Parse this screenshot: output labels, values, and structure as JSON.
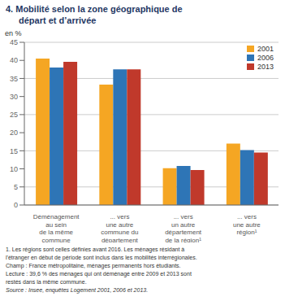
{
  "chart_data": {
    "type": "bar",
    "title": "4. Mobilité selon la zone géographique de\ndépart et d’arrivée",
    "y_label": "en %",
    "categories": [
      "Déménagement\nau sein\nde la même\ncommune",
      "... vers\nune autre\ncommune du\ndépartement",
      "... vers\nun autre\ndépartement\nde la région¹",
      "... vers\nune autre\nrégion¹"
    ],
    "series": [
      {
        "name": "2001",
        "color": "#F5A623",
        "values": [
          40.5,
          33.3,
          10.2,
          17.0
        ]
      },
      {
        "name": "2006",
        "color": "#2E75B6",
        "values": [
          38.0,
          37.5,
          10.8,
          15.2
        ]
      },
      {
        "name": "2013",
        "color": "#C0392B",
        "values": [
          39.6,
          37.5,
          9.7,
          14.5
        ]
      }
    ],
    "ylim": [
      0,
      45
    ],
    "yticks": [
      0,
      5,
      10,
      15,
      20,
      25,
      30,
      35,
      40,
      45
    ],
    "grid": true,
    "legend": "upper right",
    "annotations": [
      "1. Les régions sont celles définies avant 2016. Les ménages résidant à",
      "l'étranger en début de période sont inclus dans les mobilités interrégionales.",
      "Champ : France métropolitaine, ménages permanents hors étudiants.",
      "Lecture : 39,6 % des ménages qui ont déménagé entre 2009 et 2013 sont",
      "restés dans la même commune.",
      "Source : Insee, enquêtes Logement 2001, 2006 et 2013."
    ]
  }
}
